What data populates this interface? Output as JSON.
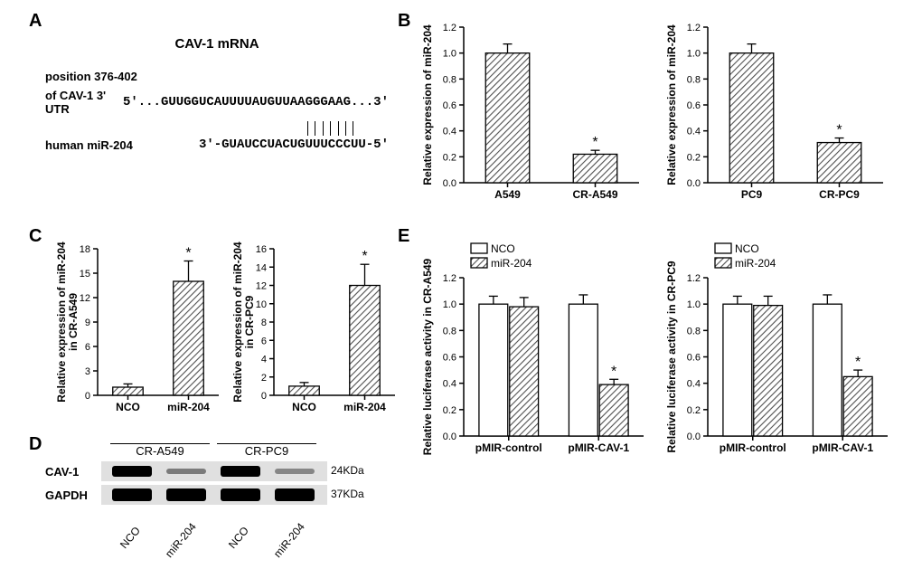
{
  "panelA": {
    "title": "CAV-1 mRNA",
    "pos_label": "position 376-402",
    "utr_label": "of CAV-1 3' UTR",
    "utr_seq": "5'...GUUGGUCAUUUUAUGUUAAGGGAAG...3'",
    "mir_label": "human miR-204",
    "mir_seq": "3'-GUAUCCUACUGUUUCCCUU-5'"
  },
  "B_left": {
    "ylabel": "Relative expression of miR-204",
    "cats": [
      "A549",
      "CR-A549"
    ],
    "vals": [
      1.0,
      0.22
    ],
    "errs": [
      0.07,
      0.03
    ],
    "star": [
      false,
      true
    ],
    "ylim": 1.2,
    "ystep": 0.2
  },
  "B_right": {
    "ylabel": "Relative expression of miR-204",
    "cats": [
      "PC9",
      "CR-PC9"
    ],
    "vals": [
      1.0,
      0.31
    ],
    "errs": [
      0.07,
      0.035
    ],
    "star": [
      false,
      true
    ],
    "ylim": 1.2,
    "ystep": 0.2
  },
  "C_left": {
    "ylabel": "Relative expression of miR-204\nin CR-A549",
    "cats": [
      "NCO",
      "miR-204"
    ],
    "vals": [
      1.0,
      14.0
    ],
    "errs": [
      0.4,
      2.5
    ],
    "star": [
      false,
      true
    ],
    "ylim": 18,
    "ystep": 3
  },
  "C_right": {
    "ylabel": "Relative expression of miR-204\nin CR-PC9",
    "cats": [
      "NCO",
      "miR-204"
    ],
    "vals": [
      1.0,
      12.0
    ],
    "errs": [
      0.4,
      2.3
    ],
    "star": [
      false,
      true
    ],
    "ylim": 16,
    "ystep": 2
  },
  "E_left": {
    "ylabel": "Relative luciferase activity in CR-A549",
    "cats": [
      "pMIR-control",
      "pMIR-CAV-1"
    ],
    "legend": [
      "NCO",
      "miR-204"
    ],
    "vals": [
      [
        1.0,
        0.98
      ],
      [
        1.0,
        0.39
      ]
    ],
    "errs": [
      [
        0.06,
        0.07
      ],
      [
        0.07,
        0.04
      ]
    ],
    "star": [
      [
        false,
        false
      ],
      [
        false,
        true
      ]
    ],
    "ylim": 1.2,
    "ystep": 0.2
  },
  "E_right": {
    "ylabel": "Relative luciferase activity in CR-PC9",
    "cats": [
      "pMIR-control",
      "pMIR-CAV-1"
    ],
    "legend": [
      "NCO",
      "miR-204"
    ],
    "vals": [
      [
        1.0,
        0.99
      ],
      [
        1.0,
        0.45
      ]
    ],
    "errs": [
      [
        0.06,
        0.07
      ],
      [
        0.07,
        0.05
      ]
    ],
    "star": [
      [
        false,
        false
      ],
      [
        false,
        true
      ]
    ],
    "ylim": 1.2,
    "ystep": 0.2
  },
  "D": {
    "groups": [
      "CR-A549",
      "CR-PC9"
    ],
    "lanes": [
      "NCO",
      "miR-204",
      "NCO",
      "miR-204"
    ],
    "rows": [
      "CAV-1",
      "GAPDH"
    ],
    "sizes": [
      "24KDa",
      "37KDa"
    ],
    "cav_intensity": [
      1.0,
      0.25,
      1.0,
      0.22
    ]
  },
  "style": {
    "hatch_color": "#505050",
    "bar_stroke": "#000",
    "bg": "#ffffff",
    "axis_width": 1.5,
    "font": "Arial"
  },
  "labels": {
    "A": "A",
    "B": "B",
    "C": "C",
    "D": "D",
    "E": "E"
  }
}
